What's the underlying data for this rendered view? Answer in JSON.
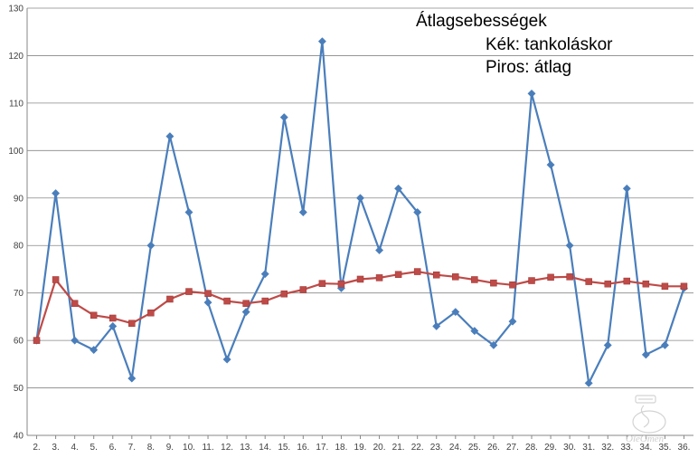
{
  "chart_data": {
    "type": "line",
    "legend": {
      "title": "Átlagsebességek",
      "line1": "Kék: tankoláskor",
      "line2": "Piros: átlag",
      "placement": "top-right"
    },
    "categories": [
      "2.",
      "3.",
      "4.",
      "5.",
      "6.",
      "7.",
      "8.",
      "9.",
      "10.",
      "11.",
      "12.",
      "13.",
      "14.",
      "15.",
      "16.",
      "17.",
      "18.",
      "19.",
      "20.",
      "21.",
      "22.",
      "23.",
      "24.",
      "25.",
      "26.",
      "27.",
      "28.",
      "29.",
      "30.",
      "31.",
      "32.",
      "33.",
      "34.",
      "35.",
      "36."
    ],
    "ylim": [
      40,
      130
    ],
    "yticks": [
      40,
      50,
      60,
      70,
      80,
      90,
      100,
      110,
      120,
      130
    ],
    "grid": true,
    "series": [
      {
        "color": "#4a7ebb",
        "marker": "diamond",
        "values": [
          60,
          91,
          60,
          58,
          63,
          52,
          80,
          103,
          87,
          68,
          56,
          66,
          74,
          107,
          87,
          123,
          71,
          90,
          79,
          92,
          87,
          63,
          66,
          62,
          59,
          64,
          112,
          97,
          80,
          51,
          59,
          92,
          57,
          59,
          71
        ]
      },
      {
        "color": "#be4b48",
        "marker": "square",
        "values": [
          60,
          72.8,
          67.8,
          65.3,
          64.7,
          63.6,
          65.8,
          68.7,
          70.3,
          69.9,
          68.3,
          67.8,
          68.3,
          69.8,
          70.7,
          72,
          71.9,
          72.9,
          73.2,
          73.9,
          74.5,
          73.8,
          73.4,
          72.8,
          72.1,
          71.7,
          72.6,
          73.3,
          73.4,
          72.4,
          71.9,
          72.5,
          71.9,
          71.4,
          71.4
        ]
      }
    ]
  },
  "watermark": {
    "text": "OleOmen",
    "icon": "car-logo-icon"
  }
}
